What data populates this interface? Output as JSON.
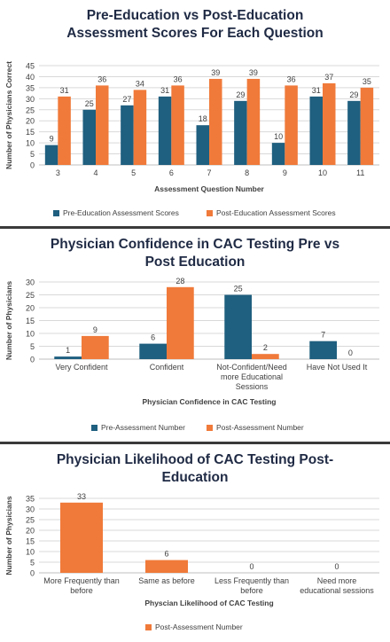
{
  "colors": {
    "pre": "#1f5f7f",
    "post": "#f07a3a",
    "grid": "#d9d9d9",
    "title": "#1f2a44",
    "separator": "#3a3a3a"
  },
  "chart_data": [
    {
      "type": "bar",
      "title_line1": "Pre-Education vs Post-Education",
      "title_line2": "Assessment Scores For Each Question",
      "xlabel": "Assessment Question Number",
      "ylabel": "Number of Physicians Correct",
      "ylim": [
        0,
        45
      ],
      "yticks": [
        0,
        5,
        10,
        15,
        20,
        25,
        30,
        35,
        40,
        45
      ],
      "grid": true,
      "legend_position": "bottom",
      "categories": [
        "3",
        "4",
        "5",
        "6",
        "7",
        "8",
        "9",
        "10",
        "11"
      ],
      "series": [
        {
          "name": "Pre-Education Assessment Scores",
          "values": [
            9,
            25,
            27,
            31,
            18,
            29,
            10,
            31,
            29
          ]
        },
        {
          "name": "Post-Education Assessment Scores",
          "values": [
            31,
            36,
            34,
            36,
            39,
            39,
            36,
            37,
            35
          ]
        }
      ]
    },
    {
      "type": "bar",
      "title_line1": "Physician Confidence in CAC Testing Pre vs",
      "title_line2": "Post Education",
      "xlabel": "Physician Confidence in CAC Testing",
      "ylabel": "Number of Physicians",
      "ylim": [
        0,
        30
      ],
      "yticks": [
        0,
        5,
        10,
        15,
        20,
        25,
        30
      ],
      "grid": true,
      "legend_position": "bottom",
      "categories": [
        [
          "Very Confident"
        ],
        [
          "Confident"
        ],
        [
          "Not-Confident/Need",
          "more Educational",
          "Sessions"
        ],
        [
          "Have Not Used It"
        ]
      ],
      "series": [
        {
          "name": "Pre-Assessment Number",
          "values": [
            1,
            6,
            25,
            7
          ]
        },
        {
          "name": "Post-Assessment Number",
          "values": [
            9,
            28,
            2,
            0
          ]
        }
      ]
    },
    {
      "type": "bar",
      "title_line1": "Physician Likelihood of CAC Testing Post-",
      "title_line2": "Education",
      "xlabel": "Physcian Likelihood of CAC Testing",
      "ylabel": "Number of Physicians",
      "ylim": [
        0,
        35
      ],
      "yticks": [
        0,
        5,
        10,
        15,
        20,
        25,
        30,
        35
      ],
      "grid": true,
      "legend_position": "bottom",
      "categories": [
        [
          "More Frequently than",
          "before"
        ],
        [
          "Same as before"
        ],
        [
          "Less Frequently than",
          "before"
        ],
        [
          "Need more",
          "educational sessions"
        ]
      ],
      "series": [
        {
          "name": "Post-Assessment Number",
          "values": [
            33,
            6,
            0,
            0
          ]
        }
      ]
    }
  ]
}
